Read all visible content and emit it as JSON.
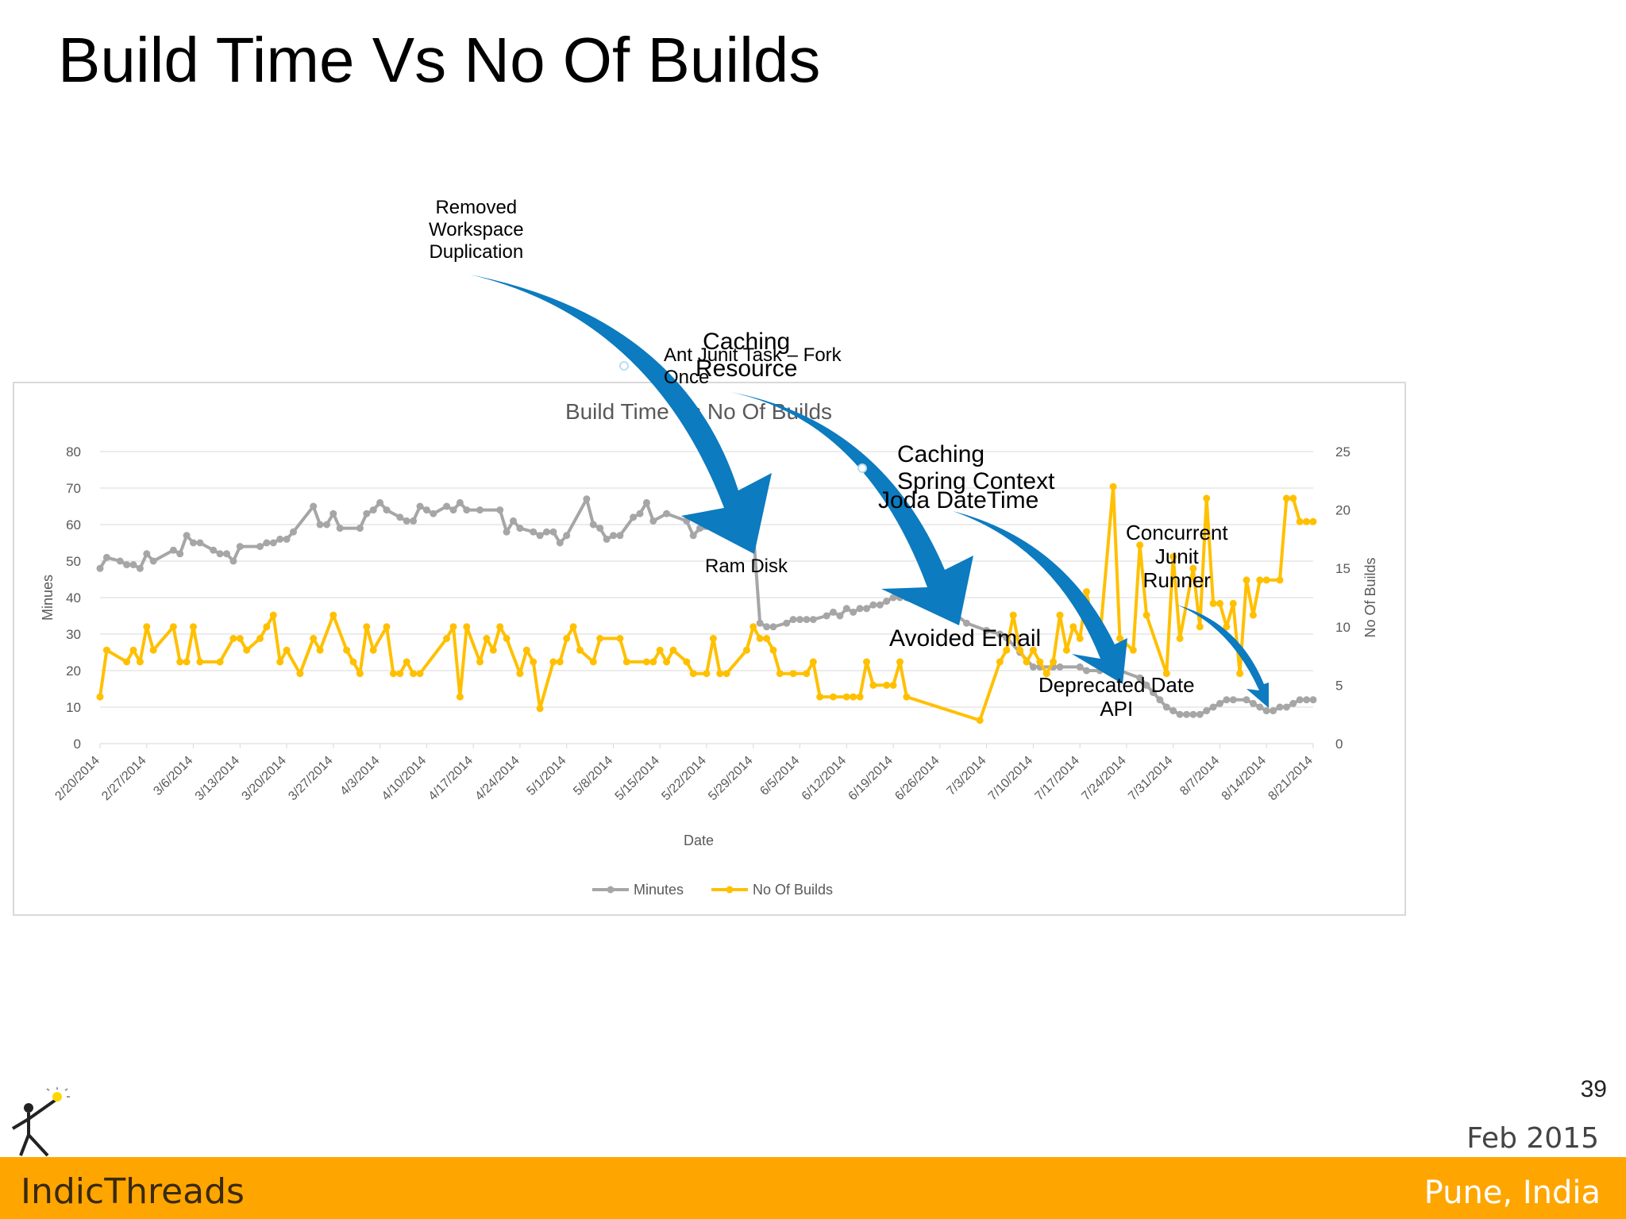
{
  "slide": {
    "title": "Build Time Vs No Of Builds",
    "page_number": "39",
    "date": "Feb 2015",
    "brand": "IndicThreads",
    "location": "Pune, India"
  },
  "colors": {
    "minutes": "#a6a6a6",
    "builds": "#ffc000",
    "arrow": "#0c7bbf",
    "grid": "#d9d9d9",
    "axis_text": "#595959",
    "footer": "#ffa500"
  },
  "annotations": {
    "workspace": "Removed\nWorkspace\nDuplication",
    "ant_junit": "Ant Junit Task – Fork\nOnce",
    "caching_resource": "Caching\nResource",
    "caching_spring": "Caching\nSpring Context",
    "joda": "Joda DateTime",
    "ram_disk": "Ram Disk",
    "avoided_email": "Avoided Email",
    "concurrent_junit": "Concurrent\nJunit\nRunner",
    "deprecated_date": "Deprecated Date\nAPI"
  },
  "chart_data": {
    "type": "line",
    "title": "Build Time Vs No Of Builds",
    "xlabel": "Date",
    "ylabel": "Minues",
    "y2label": "No Of Builds",
    "ylim": [
      0,
      80
    ],
    "y2lim": [
      0,
      25
    ],
    "yticks": [
      0,
      10,
      20,
      30,
      40,
      50,
      60,
      70,
      80
    ],
    "y2ticks": [
      0,
      5,
      10,
      15,
      20,
      25
    ],
    "x_start_day": 0,
    "x_end_day": 182,
    "categories": [
      "2/20/2014",
      "2/27/2014",
      "3/6/2014",
      "3/13/2014",
      "3/20/2014",
      "3/27/2014",
      "4/3/2014",
      "4/10/2014",
      "4/17/2014",
      "4/24/2014",
      "5/1/2014",
      "5/8/2014",
      "5/15/2014",
      "5/22/2014",
      "5/29/2014",
      "6/5/2014",
      "6/12/2014",
      "6/19/2014",
      "6/26/2014",
      "7/3/2014",
      "7/10/2014",
      "7/17/2014",
      "7/24/2014",
      "7/31/2014",
      "8/7/2014",
      "8/14/2014",
      "8/21/2014"
    ],
    "legend": [
      "Minutes",
      "No Of Builds"
    ],
    "legend_position": "bottom",
    "grid": true,
    "series": [
      {
        "name": "Minutes",
        "axis": "left",
        "points": [
          [
            0,
            48
          ],
          [
            1,
            51
          ],
          [
            3,
            50
          ],
          [
            4,
            49
          ],
          [
            5,
            49
          ],
          [
            6,
            48
          ],
          [
            7,
            52
          ],
          [
            8,
            50
          ],
          [
            11,
            53
          ],
          [
            12,
            52
          ],
          [
            13,
            57
          ],
          [
            14,
            55
          ],
          [
            15,
            55
          ],
          [
            17,
            53
          ],
          [
            18,
            52
          ],
          [
            19,
            52
          ],
          [
            20,
            50
          ],
          [
            21,
            54
          ],
          [
            24,
            54
          ],
          [
            25,
            55
          ],
          [
            26,
            55
          ],
          [
            27,
            56
          ],
          [
            28,
            56
          ],
          [
            29,
            58
          ],
          [
            32,
            65
          ],
          [
            33,
            60
          ],
          [
            34,
            60
          ],
          [
            35,
            63
          ],
          [
            36,
            59
          ],
          [
            39,
            59
          ],
          [
            40,
            63
          ],
          [
            41,
            64
          ],
          [
            42,
            66
          ],
          [
            43,
            64
          ],
          [
            45,
            62
          ],
          [
            46,
            61
          ],
          [
            47,
            61
          ],
          [
            48,
            65
          ],
          [
            49,
            64
          ],
          [
            50,
            63
          ],
          [
            52,
            65
          ],
          [
            53,
            64
          ],
          [
            54,
            66
          ],
          [
            55,
            64
          ],
          [
            57,
            64
          ],
          [
            60,
            64
          ],
          [
            61,
            58
          ],
          [
            62,
            61
          ],
          [
            63,
            59
          ],
          [
            65,
            58
          ],
          [
            66,
            57
          ],
          [
            67,
            58
          ],
          [
            68,
            58
          ],
          [
            69,
            55
          ],
          [
            70,
            57
          ],
          [
            73,
            67
          ],
          [
            74,
            60
          ],
          [
            75,
            59
          ],
          [
            76,
            56
          ],
          [
            77,
            57
          ],
          [
            78,
            57
          ],
          [
            80,
            62
          ],
          [
            81,
            63
          ],
          [
            82,
            66
          ],
          [
            83,
            61
          ],
          [
            85,
            63
          ],
          [
            88,
            61
          ],
          [
            89,
            57
          ],
          [
            90,
            59
          ],
          [
            94,
            59
          ],
          [
            95,
            59
          ],
          [
            98,
            58
          ],
          [
            99,
            33
          ],
          [
            100,
            32
          ],
          [
            101,
            32
          ],
          [
            103,
            33
          ],
          [
            104,
            34
          ],
          [
            105,
            34
          ],
          [
            106,
            34
          ],
          [
            107,
            34
          ],
          [
            109,
            35
          ],
          [
            110,
            36
          ],
          [
            111,
            35
          ],
          [
            112,
            37
          ],
          [
            113,
            36
          ],
          [
            114,
            37
          ],
          [
            115,
            37
          ],
          [
            116,
            38
          ],
          [
            117,
            38
          ],
          [
            118,
            39
          ],
          [
            119,
            40
          ],
          [
            120,
            40
          ],
          [
            121,
            40
          ],
          [
            122,
            40
          ],
          [
            124,
            39
          ],
          [
            125,
            38
          ],
          [
            127,
            37
          ],
          [
            128,
            36
          ],
          [
            130,
            33
          ],
          [
            133,
            31
          ],
          [
            135,
            30
          ],
          [
            136,
            29
          ],
          [
            138,
            25
          ],
          [
            140,
            21
          ],
          [
            141,
            21
          ],
          [
            143,
            21
          ],
          [
            144,
            21
          ],
          [
            147,
            21
          ],
          [
            148,
            20
          ],
          [
            150,
            20
          ],
          [
            151,
            21
          ],
          [
            152,
            21
          ],
          [
            153,
            20
          ],
          [
            156,
            18
          ],
          [
            157,
            16
          ],
          [
            158,
            14
          ],
          [
            159,
            12
          ],
          [
            160,
            10
          ],
          [
            161,
            9
          ],
          [
            162,
            8
          ],
          [
            163,
            8
          ],
          [
            164,
            8
          ],
          [
            165,
            8
          ],
          [
            166,
            9
          ],
          [
            167,
            10
          ],
          [
            168,
            11
          ],
          [
            169,
            12
          ],
          [
            170,
            12
          ],
          [
            172,
            12
          ],
          [
            173,
            11
          ],
          [
            174,
            10
          ],
          [
            175,
            9
          ],
          [
            176,
            9
          ],
          [
            177,
            10
          ],
          [
            178,
            10
          ],
          [
            179,
            11
          ],
          [
            180,
            12
          ],
          [
            181,
            12
          ],
          [
            182,
            12
          ]
        ]
      },
      {
        "name": "No Of Builds",
        "axis": "right",
        "points": [
          [
            0,
            4
          ],
          [
            1,
            8
          ],
          [
            4,
            7
          ],
          [
            5,
            8
          ],
          [
            6,
            7
          ],
          [
            7,
            10
          ],
          [
            8,
            8
          ],
          [
            11,
            10
          ],
          [
            12,
            7
          ],
          [
            13,
            7
          ],
          [
            14,
            10
          ],
          [
            15,
            7
          ],
          [
            18,
            7
          ],
          [
            20,
            9
          ],
          [
            21,
            9
          ],
          [
            22,
            8
          ],
          [
            24,
            9
          ],
          [
            25,
            10
          ],
          [
            26,
            11
          ],
          [
            27,
            7
          ],
          [
            28,
            8
          ],
          [
            30,
            6
          ],
          [
            32,
            9
          ],
          [
            33,
            8
          ],
          [
            35,
            11
          ],
          [
            37,
            8
          ],
          [
            38,
            7
          ],
          [
            39,
            6
          ],
          [
            40,
            10
          ],
          [
            41,
            8
          ],
          [
            43,
            10
          ],
          [
            44,
            6
          ],
          [
            45,
            6
          ],
          [
            46,
            7
          ],
          [
            47,
            6
          ],
          [
            48,
            6
          ],
          [
            52,
            9
          ],
          [
            53,
            10
          ],
          [
            54,
            4
          ],
          [
            55,
            10
          ],
          [
            57,
            7
          ],
          [
            58,
            9
          ],
          [
            59,
            8
          ],
          [
            60,
            10
          ],
          [
            61,
            9
          ],
          [
            63,
            6
          ],
          [
            64,
            8
          ],
          [
            65,
            7
          ],
          [
            66,
            3
          ],
          [
            68,
            7
          ],
          [
            69,
            7
          ],
          [
            70,
            9
          ],
          [
            71,
            10
          ],
          [
            72,
            8
          ],
          [
            74,
            7
          ],
          [
            75,
            9
          ],
          [
            78,
            9
          ],
          [
            79,
            7
          ],
          [
            82,
            7
          ],
          [
            83,
            7
          ],
          [
            84,
            8
          ],
          [
            85,
            7
          ],
          [
            86,
            8
          ],
          [
            88,
            7
          ],
          [
            89,
            6
          ],
          [
            91,
            6
          ],
          [
            92,
            9
          ],
          [
            93,
            6
          ],
          [
            94,
            6
          ],
          [
            97,
            8
          ],
          [
            98,
            10
          ],
          [
            99,
            9
          ],
          [
            100,
            9
          ],
          [
            101,
            8
          ],
          [
            102,
            6
          ],
          [
            104,
            6
          ],
          [
            106,
            6
          ],
          [
            107,
            7
          ],
          [
            108,
            4
          ],
          [
            110,
            4
          ],
          [
            112,
            4
          ],
          [
            113,
            4
          ],
          [
            114,
            4
          ],
          [
            115,
            7
          ],
          [
            116,
            5
          ],
          [
            118,
            5
          ],
          [
            119,
            5
          ],
          [
            120,
            7
          ],
          [
            121,
            4
          ],
          [
            132,
            2
          ],
          [
            135,
            7
          ],
          [
            136,
            8
          ],
          [
            137,
            11
          ],
          [
            138,
            8
          ],
          [
            139,
            7
          ],
          [
            140,
            8
          ],
          [
            141,
            7
          ],
          [
            142,
            6
          ],
          [
            143,
            7
          ],
          [
            144,
            11
          ],
          [
            145,
            8
          ],
          [
            146,
            10
          ],
          [
            147,
            9
          ],
          [
            148,
            13
          ],
          [
            149,
            10
          ],
          [
            150,
            9
          ],
          [
            152,
            22
          ],
          [
            153,
            9
          ],
          [
            155,
            8
          ],
          [
            156,
            17
          ],
          [
            157,
            11
          ],
          [
            160,
            6
          ],
          [
            161,
            16
          ],
          [
            162,
            9
          ],
          [
            164,
            15
          ],
          [
            165,
            10
          ],
          [
            166,
            21
          ],
          [
            167,
            12
          ],
          [
            168,
            12
          ],
          [
            169,
            10
          ],
          [
            170,
            12
          ],
          [
            171,
            6
          ],
          [
            172,
            14
          ],
          [
            173,
            11
          ],
          [
            174,
            14
          ],
          [
            175,
            14
          ],
          [
            177,
            14
          ],
          [
            178,
            21
          ],
          [
            179,
            21
          ],
          [
            180,
            19
          ],
          [
            181,
            19
          ],
          [
            182,
            19
          ]
        ]
      }
    ]
  }
}
